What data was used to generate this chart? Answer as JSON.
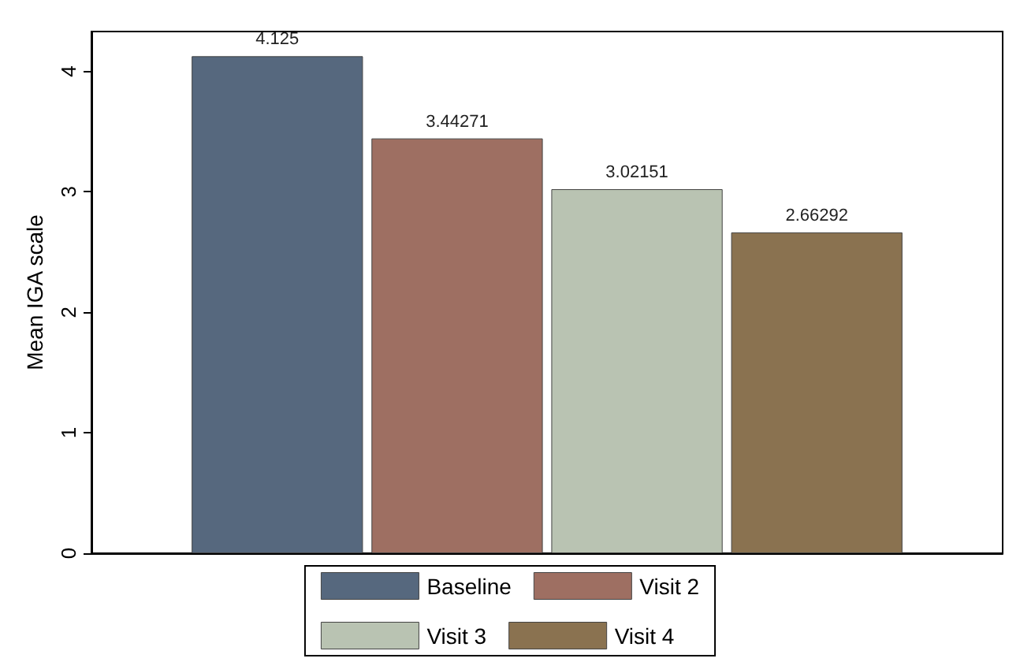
{
  "chart_data": {
    "type": "bar",
    "ylabel": "Mean IGA scale",
    "categories": [
      null
    ],
    "series": [
      {
        "name": "Baseline",
        "color": "#56687e",
        "values": [
          4.125
        ]
      },
      {
        "name": "Visit 2",
        "color": "#9e6f62",
        "values": [
          3.44271
        ]
      },
      {
        "name": "Visit 3",
        "color": "#b9c3b2",
        "values": [
          3.02151
        ]
      },
      {
        "name": "Visit 4",
        "color": "#8a7250",
        "values": [
          2.66292
        ]
      }
    ],
    "ylim": [
      0,
      4.33
    ],
    "yticks": [
      0,
      1,
      2,
      3,
      4
    ],
    "data_labels": true,
    "grid": false,
    "legend": "bottom"
  }
}
